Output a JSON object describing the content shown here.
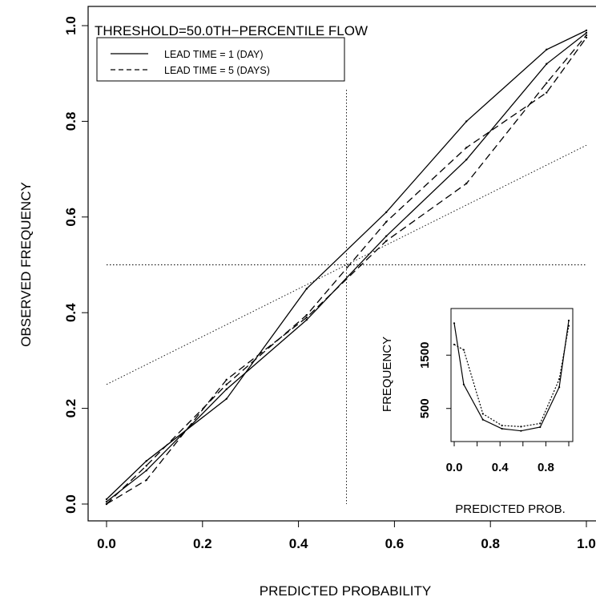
{
  "chart_data": [
    {
      "type": "line",
      "title": "THRESHOLD=50.0TH−PERCENTILE FLOW",
      "xlabel": "PREDICTED PROBABILITY",
      "ylabel": "OBSERVED FREQUENCY",
      "xlim": [
        0,
        1
      ],
      "ylim": [
        0,
        1
      ],
      "xticks": [
        "0.0",
        "0.2",
        "0.4",
        "0.6",
        "0.8",
        "1.0"
      ],
      "yticks": [
        "0.0",
        "0.2",
        "0.4",
        "0.6",
        "0.8",
        "1.0"
      ],
      "legend": {
        "position": "top-left",
        "entries": [
          {
            "label": "LEAD TIME = 1 (DAY)",
            "style": "solid"
          },
          {
            "label": "LEAD TIME = 5 (DAYS)",
            "style": "dashed"
          }
        ]
      },
      "series": [
        {
          "name": "LEAD TIME = 1 (DAY)",
          "style": "solid",
          "x": [
            0.0,
            0.083,
            0.25,
            0.417,
            0.583,
            0.75,
            0.917,
            1.0
          ],
          "y": [
            0.01,
            0.09,
            0.22,
            0.45,
            0.61,
            0.8,
            0.95,
            0.99
          ]
        },
        {
          "name": "LEAD TIME = 1 (DAY)",
          "style": "solid",
          "x": [
            0.0,
            0.083,
            0.25,
            0.417,
            0.583,
            0.75,
            0.917,
            1.0
          ],
          "y": [
            0.005,
            0.07,
            0.24,
            0.385,
            0.56,
            0.72,
            0.92,
            0.985
          ]
        },
        {
          "name": "LEAD TIME = 5 (DAYS)",
          "style": "dashed",
          "x": [
            0.0,
            0.083,
            0.25,
            0.417,
            0.583,
            0.75,
            0.917,
            1.0
          ],
          "y": [
            0.0,
            0.05,
            0.26,
            0.39,
            0.55,
            0.67,
            0.88,
            0.98
          ]
        },
        {
          "name": "LEAD TIME = 5 (DAYS)",
          "style": "dashed",
          "x": [
            0.0,
            0.083,
            0.25,
            0.417,
            0.583,
            0.75,
            0.917,
            1.0
          ],
          "y": [
            0.0,
            0.08,
            0.25,
            0.395,
            0.59,
            0.745,
            0.86,
            0.975
          ]
        }
      ],
      "reference_lines": [
        {
          "kind": "horizontal",
          "y": 0.5,
          "style": "dotted"
        },
        {
          "kind": "vertical",
          "x": 0.5,
          "style": "dotted"
        },
        {
          "kind": "no-skill",
          "x": [
            0,
            1
          ],
          "y": [
            0.25,
            0.75
          ],
          "style": "dotted"
        }
      ]
    },
    {
      "type": "line",
      "title": "",
      "xlabel": "PREDICTED PROB.",
      "ylabel": "FREQUENCY",
      "xlim": [
        0,
        1
      ],
      "ylim": [
        0,
        2300
      ],
      "xticks": [
        "0.0",
        "0.4",
        "0.8"
      ],
      "yticks": [
        "500",
        "1500"
      ],
      "series": [
        {
          "name": "LEAD TIME = 1 (DAY)",
          "style": "solid",
          "x": [
            0.0,
            0.083,
            0.25,
            0.417,
            0.583,
            0.75,
            0.917,
            1.0
          ],
          "y": [
            2100,
            950,
            290,
            120,
            80,
            150,
            900,
            2150
          ]
        },
        {
          "name": "LEAD TIME = 5 (DAYS)",
          "style": "dotted",
          "x": [
            0.0,
            0.083,
            0.25,
            0.417,
            0.583,
            0.75,
            0.917,
            1.0
          ],
          "y": [
            1700,
            1600,
            400,
            180,
            160,
            220,
            1050,
            2050
          ]
        }
      ]
    }
  ]
}
